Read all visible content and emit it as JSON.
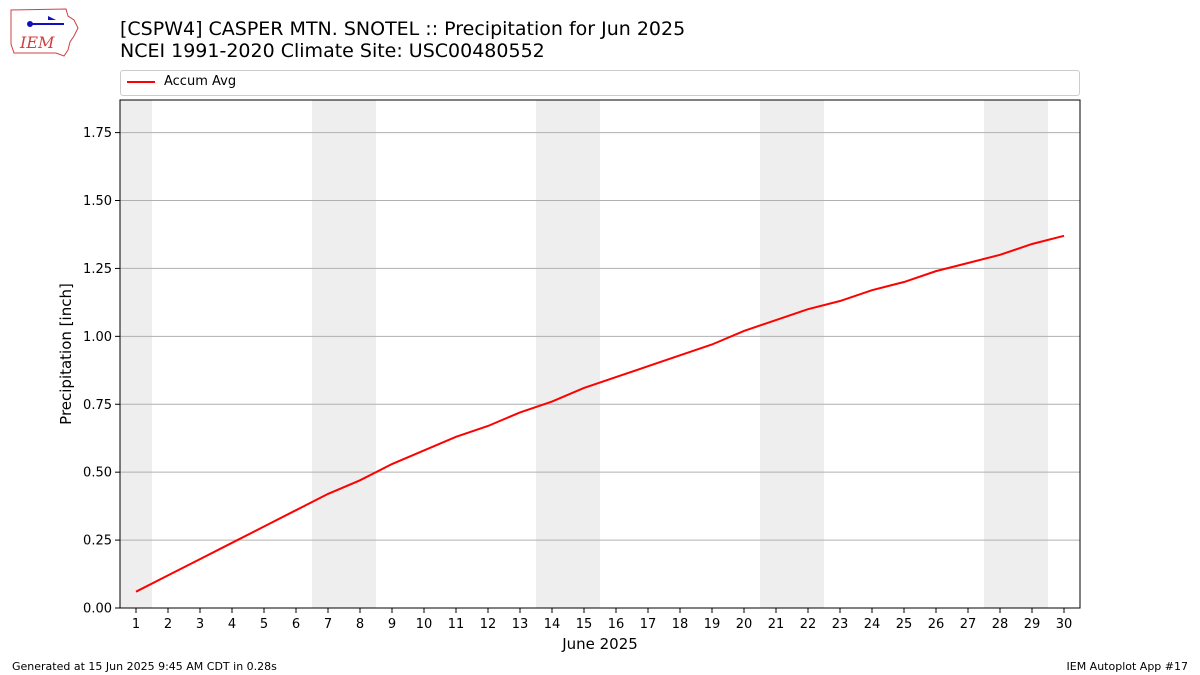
{
  "header": {
    "title_line1": "[CSPW4] CASPER MTN. SNOTEL :: Precipitation for Jun 2025",
    "title_line2": "NCEI 1991-2020 Climate Site: USC00480552"
  },
  "logo": {
    "text": "IEM"
  },
  "footer": {
    "generated": "Generated at 15 Jun 2025 9:45 AM CDT in 0.28s",
    "app": "IEM Autoplot App #17"
  },
  "colors": {
    "series": "#ff0000",
    "weekend": "#eeeeee",
    "grid": "#b0b0b0"
  },
  "chart_data": {
    "type": "line",
    "title": "[CSPW4] CASPER MTN. SNOTEL :: Precipitation for Jun 2025",
    "subtitle": "NCEI 1991-2020 Climate Site: USC00480552",
    "xlabel": "June 2025",
    "ylabel": "Precipitation [inch]",
    "xlim": [
      0.5,
      30.5
    ],
    "ylim": [
      0,
      1.87
    ],
    "yticks": [
      0.0,
      0.25,
      0.5,
      0.75,
      1.0,
      1.25,
      1.5,
      1.75
    ],
    "ytick_labels": [
      "0.00",
      "0.25",
      "0.50",
      "0.75",
      "1.00",
      "1.25",
      "1.50",
      "1.75"
    ],
    "xticks": [
      1,
      2,
      3,
      4,
      5,
      6,
      7,
      8,
      9,
      10,
      11,
      12,
      13,
      14,
      15,
      16,
      17,
      18,
      19,
      20,
      21,
      22,
      23,
      24,
      25,
      26,
      27,
      28,
      29,
      30
    ],
    "grid": "horizontal",
    "legend_placement": "top",
    "weekend_days": [
      1,
      7,
      8,
      14,
      15,
      21,
      22,
      28,
      29
    ],
    "series": [
      {
        "name": "Accum Avg",
        "x": [
          1,
          2,
          3,
          4,
          5,
          6,
          7,
          8,
          9,
          10,
          11,
          12,
          13,
          14,
          15,
          16,
          17,
          18,
          19,
          20,
          21,
          22,
          23,
          24,
          25,
          26,
          27,
          28,
          29,
          30
        ],
        "values": [
          0.06,
          0.12,
          0.18,
          0.24,
          0.3,
          0.36,
          0.42,
          0.47,
          0.53,
          0.58,
          0.63,
          0.67,
          0.72,
          0.76,
          0.81,
          0.85,
          0.89,
          0.93,
          0.97,
          1.02,
          1.06,
          1.1,
          1.13,
          1.17,
          1.2,
          1.24,
          1.27,
          1.3,
          1.34,
          1.37
        ]
      }
    ]
  }
}
